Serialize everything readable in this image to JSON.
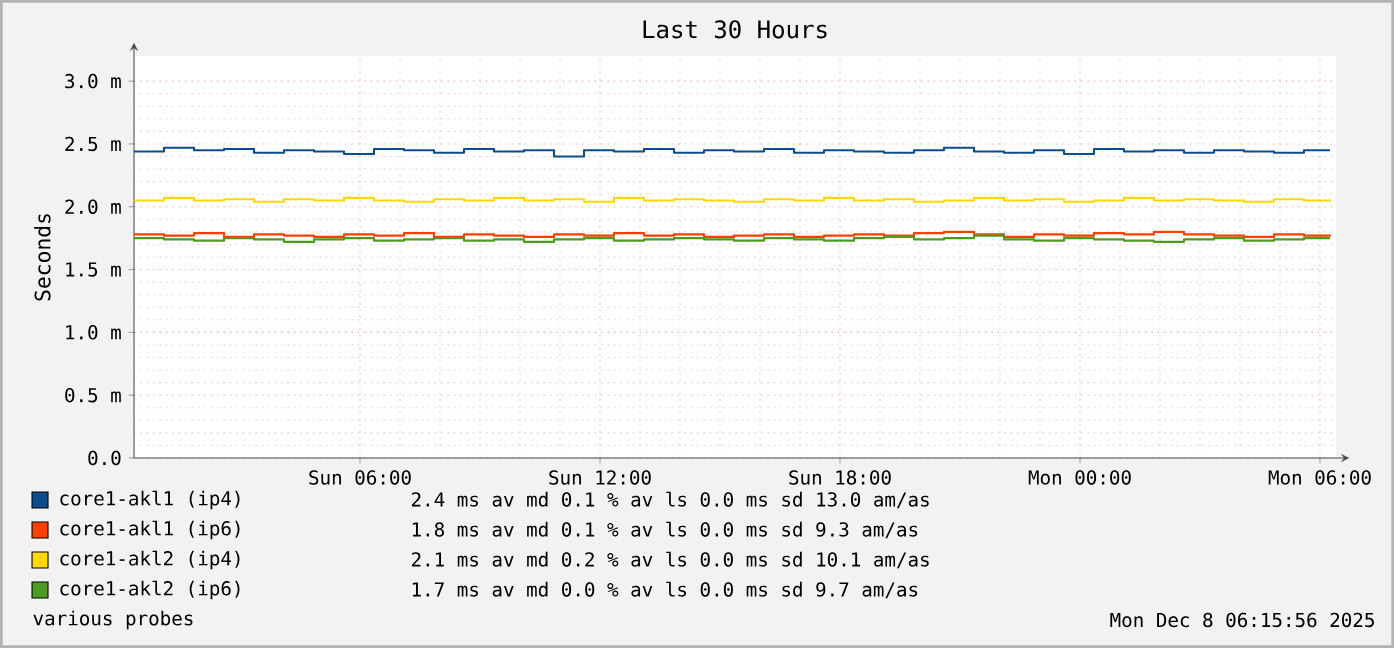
{
  "chart_data": {
    "type": "step",
    "title": "Last 30 Hours",
    "ylabel": "Seconds",
    "x": [
      "2025-12-07T00:21",
      "2025-12-07T01:06",
      "2025-12-07T01:51",
      "2025-12-07T02:36",
      "2025-12-07T03:21",
      "2025-12-07T04:06",
      "2025-12-07T04:51",
      "2025-12-07T05:36",
      "2025-12-07T06:21",
      "2025-12-07T07:06",
      "2025-12-07T07:51",
      "2025-12-07T08:36",
      "2025-12-07T09:21",
      "2025-12-07T10:06",
      "2025-12-07T10:51",
      "2025-12-07T11:36",
      "2025-12-07T12:21",
      "2025-12-07T13:06",
      "2025-12-07T13:51",
      "2025-12-07T14:36",
      "2025-12-07T15:21",
      "2025-12-07T16:06",
      "2025-12-07T16:51",
      "2025-12-07T17:36",
      "2025-12-07T18:21",
      "2025-12-07T19:06",
      "2025-12-07T19:51",
      "2025-12-07T20:36",
      "2025-12-07T21:21",
      "2025-12-07T22:06",
      "2025-12-07T22:51",
      "2025-12-07T23:36",
      "2025-12-08T00:21",
      "2025-12-08T01:06",
      "2025-12-08T01:51",
      "2025-12-08T02:36",
      "2025-12-08T03:21",
      "2025-12-08T04:06",
      "2025-12-08T04:51",
      "2025-12-08T05:36",
      "2025-12-08T06:15"
    ],
    "series": [
      {
        "name": "core1-akl1 (ip4)",
        "color": "#0b4c8c",
        "values": [
          2.44,
          2.47,
          2.45,
          2.46,
          2.43,
          2.45,
          2.44,
          2.42,
          2.46,
          2.45,
          2.43,
          2.46,
          2.44,
          2.45,
          2.4,
          2.45,
          2.44,
          2.46,
          2.43,
          2.45,
          2.44,
          2.46,
          2.43,
          2.45,
          2.44,
          2.43,
          2.45,
          2.47,
          2.44,
          2.43,
          2.45,
          2.42,
          2.46,
          2.44,
          2.45,
          2.43,
          2.45,
          2.44,
          2.43,
          2.45,
          2.45
        ]
      },
      {
        "name": "core1-akl1 (ip6)",
        "color": "#ff3f00",
        "values": [
          1.78,
          1.77,
          1.79,
          1.76,
          1.78,
          1.77,
          1.76,
          1.78,
          1.77,
          1.79,
          1.76,
          1.78,
          1.77,
          1.76,
          1.78,
          1.77,
          1.79,
          1.77,
          1.78,
          1.76,
          1.77,
          1.78,
          1.76,
          1.77,
          1.78,
          1.77,
          1.79,
          1.8,
          1.78,
          1.76,
          1.78,
          1.77,
          1.79,
          1.78,
          1.8,
          1.78,
          1.77,
          1.76,
          1.78,
          1.77,
          1.78
        ]
      },
      {
        "name": "core1-akl2 (ip4)",
        "color": "#ffd700",
        "values": [
          2.05,
          2.07,
          2.05,
          2.06,
          2.04,
          2.06,
          2.05,
          2.07,
          2.05,
          2.04,
          2.06,
          2.05,
          2.07,
          2.05,
          2.06,
          2.04,
          2.07,
          2.05,
          2.06,
          2.05,
          2.04,
          2.06,
          2.05,
          2.07,
          2.05,
          2.06,
          2.04,
          2.05,
          2.07,
          2.05,
          2.06,
          2.04,
          2.05,
          2.07,
          2.05,
          2.06,
          2.05,
          2.04,
          2.06,
          2.05,
          2.06
        ]
      },
      {
        "name": "core1-akl2 (ip6)",
        "color": "#4c9a1e",
        "values": [
          1.75,
          1.74,
          1.73,
          1.75,
          1.74,
          1.72,
          1.74,
          1.75,
          1.73,
          1.74,
          1.75,
          1.73,
          1.74,
          1.72,
          1.74,
          1.75,
          1.73,
          1.74,
          1.75,
          1.74,
          1.73,
          1.75,
          1.74,
          1.73,
          1.75,
          1.76,
          1.74,
          1.75,
          1.77,
          1.74,
          1.73,
          1.75,
          1.74,
          1.73,
          1.72,
          1.74,
          1.75,
          1.73,
          1.74,
          1.75,
          1.75
        ]
      }
    ],
    "xlim": [
      "2025-12-07T00:21",
      "2025-12-08T06:24"
    ],
    "xticks": [
      {
        "value": "2025-12-07T06:00",
        "label": "Sun 06:00"
      },
      {
        "value": "2025-12-07T12:00",
        "label": "Sun 12:00"
      },
      {
        "value": "2025-12-07T18:00",
        "label": "Sun 18:00"
      },
      {
        "value": "2025-12-08T00:00",
        "label": "Mon 00:00"
      },
      {
        "value": "2025-12-08T06:00",
        "label": "Mon 06:00"
      }
    ],
    "ylim": [
      0,
      3.2
    ],
    "yticks": [
      {
        "value": 0,
        "label": "0.0"
      },
      {
        "value": 0.5,
        "label": "0.5 m"
      },
      {
        "value": 1.0,
        "label": "1.0 m"
      },
      {
        "value": 1.5,
        "label": "1.5 m"
      },
      {
        "value": 2.0,
        "label": "2.0 m"
      },
      {
        "value": 2.5,
        "label": "2.5 m"
      },
      {
        "value": 3.0,
        "label": "3.0 m"
      }
    ],
    "grid": true,
    "legend": "bottom",
    "marker": "none",
    "line_style": "solid",
    "annotations": [
      "2.4 ms av md 0.1 % av ls 0.0 ms sd 13.0 am/as",
      "1.8 ms av md 0.1 % av ls 0.0 ms sd 9.3 am/as",
      "2.1 ms av md 0.2 % av ls 0.0 ms sd 10.1 am/as",
      "1.7 ms av md 0.0 % av ls 0.0 ms sd 9.7 am/as",
      "various probes",
      "Mon Dec  8 06:15:56 2025"
    ]
  }
}
